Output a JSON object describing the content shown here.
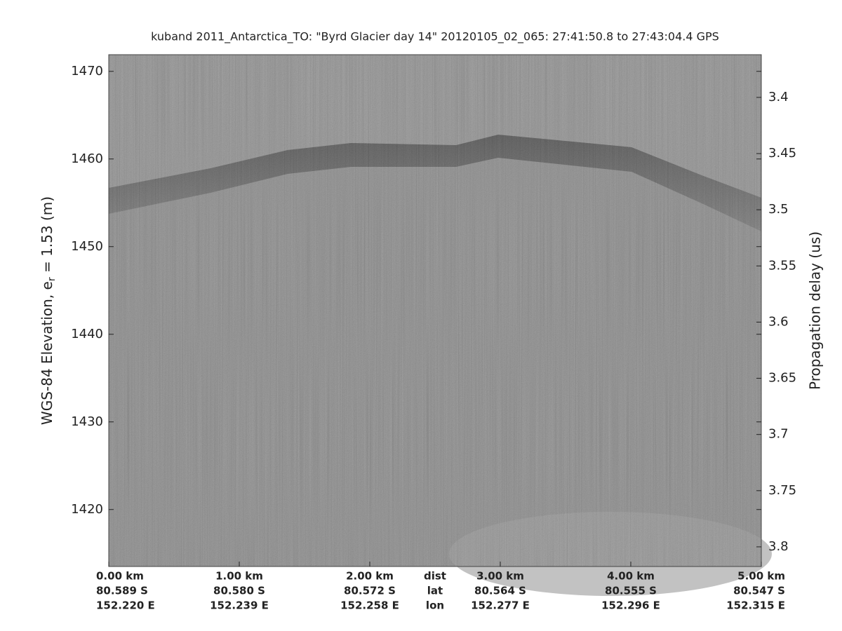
{
  "chart_data": {
    "type": "echogram",
    "title": "kuband 2011_Antarctica_TO: \"Byrd Glacier day 14\"  20120105_02_065: 27:41:50.8 to 27:43:04.4 GPS",
    "y_label": [
      "WGS-84 Elevation, e",
      "r",
      " = 1.53 (m)"
    ],
    "y2_label": "Propagation delay (us)",
    "xlim": [
      0,
      5
    ],
    "xticks": [
      {
        "value": 0,
        "label": "0.00 km"
      },
      {
        "value": 1,
        "label": "1.00 km"
      },
      {
        "value": 2,
        "label": "2.00 km"
      },
      {
        "value": 3,
        "label": "3.00 km"
      },
      {
        "value": 4,
        "label": "4.00 km"
      },
      {
        "value": 5,
        "label": "5.00 km"
      }
    ],
    "lat_labels": [
      "80.589 S",
      "80.580 S",
      "80.572 S",
      "80.564 S",
      "80.555 S",
      "80.547 S"
    ],
    "lon_labels": [
      "152.220 E",
      "152.239 E",
      "152.258 E",
      "152.277 E",
      "152.296 E",
      "152.315 E"
    ],
    "row_labels": [
      "dist",
      "lat",
      "lon"
    ],
    "ylim": [
      1413.5,
      1471.9
    ],
    "yticks": [
      1420,
      1430,
      1440,
      1450,
      1460,
      1470
    ],
    "y2lim": [
      3.362,
      3.8175
    ],
    "y2ticks": [
      3.4,
      3.45,
      3.5,
      3.55,
      3.6,
      3.65,
      3.7,
      3.75,
      3.8
    ]
  }
}
